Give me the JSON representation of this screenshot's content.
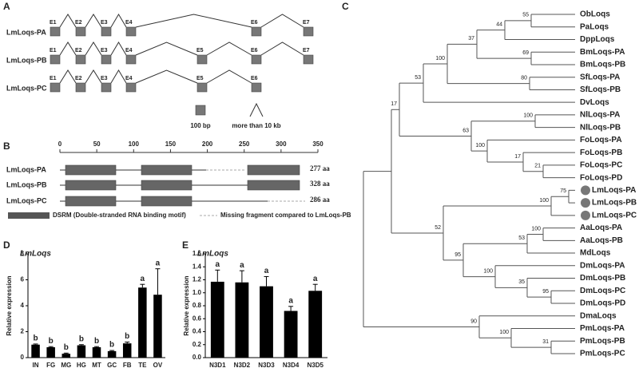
{
  "panel_a": {
    "label": "A",
    "transcripts": [
      {
        "name": "LmLoqs-PA",
        "exons": [
          "E1",
          "E2",
          "E3",
          "E4",
          "E6",
          "E7"
        ]
      },
      {
        "name": "LmLoqs-PB",
        "exons": [
          "E1",
          "E2",
          "E3",
          "E4",
          "E5",
          "E6",
          "E7"
        ]
      },
      {
        "name": "LmLoqs-PC",
        "exons": [
          "E1",
          "E2",
          "E3",
          "E4",
          "E5",
          "E6"
        ]
      }
    ],
    "scale": [
      "100 bp",
      "more than 10 kb"
    ]
  },
  "panel_b": {
    "label": "B",
    "xlim": [
      0,
      350
    ],
    "xticks": [
      0,
      50,
      100,
      150,
      200,
      250,
      300,
      350
    ],
    "transcripts": [
      "LmLoqs-PA",
      "LmLoqs-PB",
      "LmLoqs-PC"
    ],
    "lengths": [
      "277 aa",
      "328 aa",
      "286 aa"
    ],
    "legend": [
      "DSRM (Double-stranded RNA binding motif)",
      "Missing fragment compared to LmLoqs-PB"
    ]
  },
  "panel_c": {
    "label": "C",
    "leaves": [
      "ObLoqs",
      "PaLoqs",
      "DppLoqs",
      "BmLoqs-PA",
      "BmLoqs-PB",
      "SfLoqs-PA",
      "SfLoqs-PB",
      "DvLoqs",
      "NlLoqs-PA",
      "NlLoqs-PB",
      "FoLoqs-PA",
      "FoLoqs-PB",
      "FoLoqs-PC",
      "FoLoqs-PD",
      "LmLoqs-PA",
      "LmLoqs-PB",
      "LmLoqs-PC",
      "AaLoqs-PA",
      "AaLoqs-PB",
      "MdLoqs",
      "DmLoqs-PA",
      "DmLoqs-PB",
      "DmLoqs-PC",
      "DmLoqs-PD",
      "DmaLoqs",
      "PmLoqs-PA",
      "PmLoqs-PB",
      "PmLoqs-PC"
    ],
    "support": [
      55,
      44,
      69,
      37,
      80,
      100,
      53,
      100,
      21,
      17,
      100,
      63,
      17,
      75,
      100,
      100,
      53,
      95,
      35,
      100,
      95,
      52,
      31,
      100,
      90
    ]
  },
  "chart_data": [
    {
      "type": "bar",
      "panel": "D",
      "title": "LmLoqs",
      "y_label": "Relative expression",
      "categories": [
        "IN",
        "FG",
        "MG",
        "HG",
        "MT",
        "GC",
        "FB",
        "TE",
        "OV"
      ],
      "values": [
        1.0,
        0.8,
        0.3,
        0.95,
        0.8,
        0.5,
        1.1,
        5.4,
        4.85
      ],
      "errors": [
        0.05,
        0.05,
        0.05,
        0.05,
        0.05,
        0.05,
        0.1,
        0.25,
        2.0
      ],
      "annotations": [
        "b",
        "b",
        "b",
        "b",
        "b",
        "b",
        "b",
        "a",
        "a"
      ],
      "color": "#000000",
      "ylim": [
        0,
        8
      ],
      "yticks": [
        0,
        2,
        4,
        6,
        8
      ]
    },
    {
      "type": "bar",
      "panel": "E",
      "title": "LmLoqs",
      "y_label": "Relative expression",
      "categories": [
        "N3D1",
        "N3D2",
        "N3D3",
        "N3D4",
        "N3D5"
      ],
      "values": [
        1.17,
        1.16,
        1.1,
        0.72,
        1.03
      ],
      "errors": [
        0.18,
        0.18,
        0.15,
        0.07,
        0.1
      ],
      "annotations": [
        "a",
        "a",
        "a",
        "a",
        "a"
      ],
      "color": "#000000",
      "ylim": [
        0,
        1.6
      ],
      "yticks": [
        {
          "value": 0,
          "label": "0.0"
        },
        0.2,
        0.4,
        0.6,
        0.8,
        {
          "value": 1,
          "label": "1.0"
        },
        1.2,
        1.4,
        1.6
      ]
    }
  ]
}
